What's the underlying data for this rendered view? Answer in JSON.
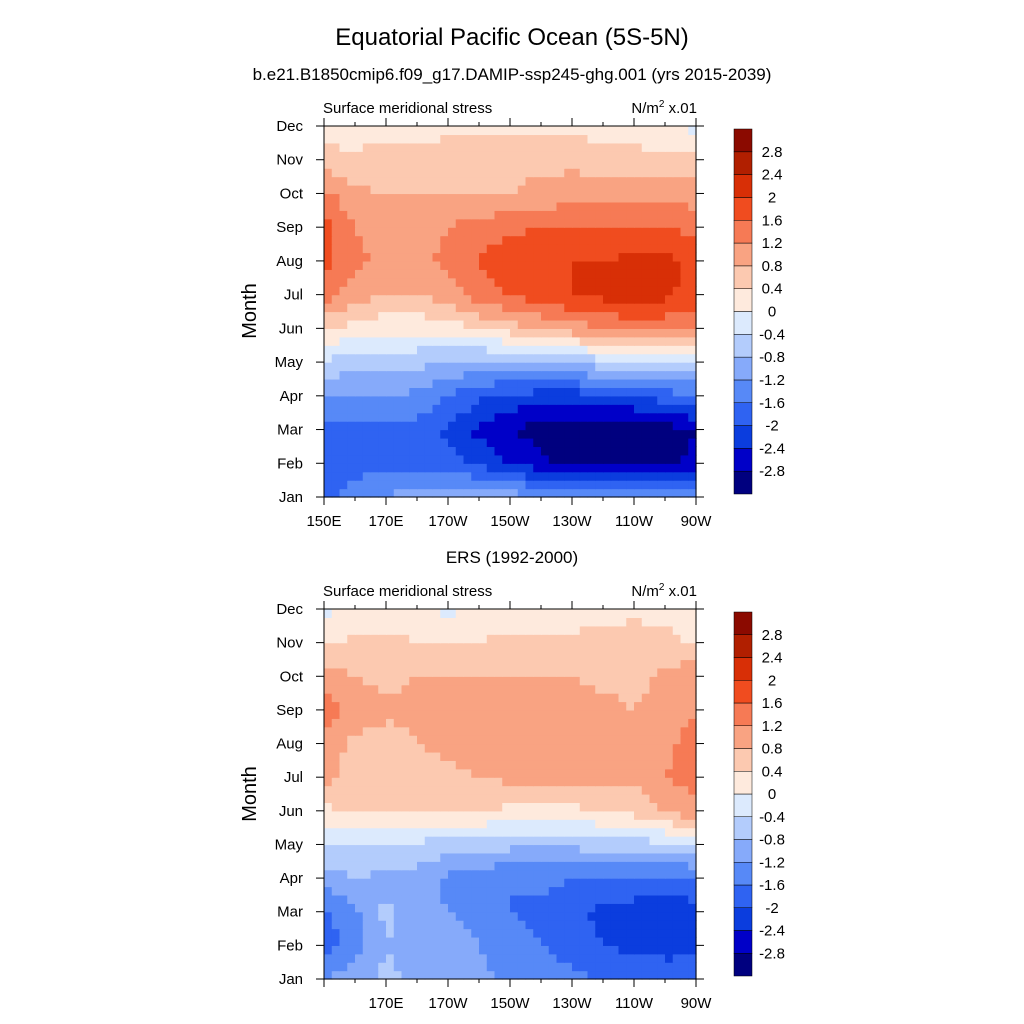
{
  "title": "Equatorial Pacific Ocean (5S-5N)",
  "palette": [
    "#00007f",
    "#0000c8",
    "#0b3dde",
    "#2f63f2",
    "#5789f7",
    "#86aafa",
    "#b3ccfc",
    "#dceafd",
    "#feeadd",
    "#fcc9b0",
    "#f9a382",
    "#f67a55",
    "#f04c1f",
    "#d82f06",
    "#b11f00",
    "#8b0a00"
  ],
  "levels": [
    -2.8,
    -2.4,
    -2,
    -1.6,
    -1.2,
    -0.8,
    -0.4,
    0,
    0.4,
    0.8,
    1.2,
    1.6,
    2,
    2.4,
    2.8
  ],
  "chart_data": [
    {
      "type": "heatmap",
      "id": "model",
      "subtitle": "b.e21.B1850cmip6.f09_g17.DAMIP-ssp245-ghg.001 (yrs 2015-2039)",
      "left_label": "Surface meridional stress",
      "right_label": "N/m",
      "right_label_sup": "2",
      "right_label_tail": " x.01",
      "ylabel": "Month",
      "xlabel": "",
      "x_ticks": [
        "150E",
        "170E",
        "170W",
        "150W",
        "130W",
        "110W",
        "90W"
      ],
      "x": [
        150,
        160,
        170,
        180,
        190,
        200,
        210,
        220,
        230,
        240,
        250,
        260,
        270
      ],
      "y_ticks": [
        "Jan",
        "Feb",
        "Mar",
        "Apr",
        "May",
        "Jun",
        "Jul",
        "Aug",
        "Sep",
        "Oct",
        "Nov",
        "Dec"
      ],
      "colorbar_labels": [
        "-2.8",
        "-2.4",
        "-2",
        "-1.6",
        "-1.2",
        "-0.8",
        "-0.4",
        "0",
        "0.4",
        "0.8",
        "1.2",
        "1.6",
        "2",
        "2.4",
        "2.8"
      ],
      "z": [
        [
          -1.7,
          -1.4,
          -1.2,
          -1.0,
          -0.9,
          -0.9,
          -1.0,
          -1.1,
          -1.2,
          -1.3,
          -1.4,
          -1.4,
          -1.3
        ],
        [
          -1.9,
          -1.8,
          -1.7,
          -1.7,
          -1.8,
          -2.1,
          -2.4,
          -2.7,
          -2.9,
          -3.0,
          -3.0,
          -2.9,
          -2.7
        ],
        [
          -1.8,
          -1.8,
          -1.7,
          -1.8,
          -2.1,
          -2.5,
          -2.8,
          -3.0,
          -3.1,
          -3.1,
          -3.1,
          -3.0,
          -2.8
        ],
        [
          -1.2,
          -1.2,
          -1.2,
          -1.3,
          -1.6,
          -1.9,
          -2.1,
          -2.2,
          -2.2,
          -2.1,
          -2.0,
          -1.8,
          -1.6
        ],
        [
          -0.5,
          -0.6,
          -0.6,
          -0.7,
          -0.8,
          -0.9,
          -0.9,
          -0.8,
          -0.7,
          -0.6,
          -0.5,
          -0.5,
          -0.5
        ],
        [
          0.5,
          0.2,
          0.1,
          0.1,
          0.2,
          0.4,
          0.6,
          0.8,
          1.0,
          1.2,
          1.3,
          1.3,
          1.3
        ],
        [
          1.4,
          1.0,
          0.8,
          0.8,
          1.0,
          1.4,
          1.6,
          1.9,
          2.0,
          2.1,
          2.2,
          2.1,
          1.8
        ],
        [
          1.7,
          1.3,
          1.1,
          1.1,
          1.3,
          1.6,
          1.9,
          2.0,
          2.0,
          2.0,
          2.1,
          2.1,
          1.9
        ],
        [
          1.8,
          1.2,
          1.0,
          1.0,
          1.2,
          1.4,
          1.5,
          1.6,
          1.6,
          1.6,
          1.6,
          1.6,
          1.5
        ],
        [
          1.3,
          0.9,
          0.8,
          0.8,
          0.8,
          0.8,
          0.8,
          0.9,
          1.0,
          1.0,
          1.0,
          1.0,
          1.0
        ],
        [
          0.6,
          0.5,
          0.5,
          0.5,
          0.6,
          0.7,
          0.7,
          0.7,
          0.7,
          0.6,
          0.6,
          0.5,
          0.5
        ],
        [
          0.1,
          0.2,
          0.3,
          0.3,
          0.3,
          0.3,
          0.3,
          0.3,
          0.3,
          0.2,
          0.1,
          0.0,
          -0.1
        ]
      ]
    },
    {
      "type": "heatmap",
      "id": "obs",
      "subtitle": "ERS (1992-2000)",
      "left_label": "Surface meridional stress",
      "right_label": "N/m",
      "right_label_sup": "2",
      "right_label_tail": " x.01",
      "ylabel": "Month",
      "xlabel": "",
      "x_ticks": [
        "",
        "170E",
        "170W",
        "150W",
        "130W",
        "110W",
        "90W"
      ],
      "x": [
        150,
        160,
        170,
        180,
        190,
        200,
        210,
        220,
        230,
        240,
        250,
        260,
        270
      ],
      "y_ticks": [
        "Jan",
        "Feb",
        "Mar",
        "Apr",
        "May",
        "Jun",
        "Jul",
        "Aug",
        "Sep",
        "Oct",
        "Nov",
        "Dec"
      ],
      "colorbar_labels": [
        "-2.8",
        "-2.4",
        "-2",
        "-1.6",
        "-1.2",
        "-0.8",
        "-0.4",
        "0",
        "0.4",
        "0.8",
        "1.2",
        "1.6",
        "2",
        "2.4",
        "2.8"
      ],
      "z": [
        [
          -1.2,
          -1.0,
          -0.7,
          -0.9,
          -1.0,
          -1.1,
          -1.3,
          -1.4,
          -1.5,
          -1.6,
          -1.6,
          -1.7,
          -1.7
        ],
        [
          -1.8,
          -1.4,
          -0.8,
          -1.0,
          -1.1,
          -1.2,
          -1.4,
          -1.6,
          -1.8,
          -2.0,
          -2.1,
          -2.2,
          -2.1
        ],
        [
          -1.7,
          -1.3,
          -0.7,
          -1.0,
          -1.2,
          -1.3,
          -1.6,
          -1.7,
          -1.9,
          -2.1,
          -2.2,
          -2.3,
          -2.2
        ],
        [
          -1.0,
          -0.8,
          -0.9,
          -1.0,
          -1.3,
          -1.5,
          -1.6,
          -1.5,
          -1.6,
          -1.6,
          -1.7,
          -1.7,
          -1.6
        ],
        [
          -0.4,
          -0.4,
          -0.4,
          -0.5,
          -0.6,
          -0.6,
          -0.7,
          -0.7,
          -0.7,
          -0.6,
          -0.6,
          -0.5,
          -0.5
        ],
        [
          0.3,
          0.5,
          0.5,
          0.5,
          0.4,
          0.4,
          0.3,
          0.2,
          0.3,
          0.4,
          0.5,
          0.9,
          1.1
        ],
        [
          0.9,
          0.7,
          0.6,
          0.6,
          0.7,
          0.8,
          0.9,
          0.9,
          0.9,
          0.9,
          0.9,
          1.2,
          1.3
        ],
        [
          1.0,
          0.7,
          0.6,
          0.8,
          0.9,
          1.0,
          1.0,
          0.9,
          1.0,
          0.9,
          0.9,
          1.1,
          1.4
        ],
        [
          1.4,
          1.0,
          0.9,
          0.9,
          0.9,
          1.0,
          1.0,
          1.0,
          1.0,
          0.9,
          0.8,
          0.9,
          1.2
        ],
        [
          1.0,
          0.8,
          0.7,
          0.8,
          0.8,
          0.8,
          0.8,
          0.8,
          0.8,
          0.7,
          0.7,
          0.9,
          1.2
        ],
        [
          0.3,
          0.5,
          0.5,
          0.4,
          0.4,
          0.4,
          0.5,
          0.5,
          0.5,
          0.5,
          0.6,
          0.5,
          0.3
        ],
        [
          -0.1,
          0.2,
          0.2,
          0.1,
          -0.1,
          0.1,
          0.2,
          0.1,
          0.2,
          0.3,
          0.3,
          0.3,
          0.2
        ]
      ]
    }
  ]
}
